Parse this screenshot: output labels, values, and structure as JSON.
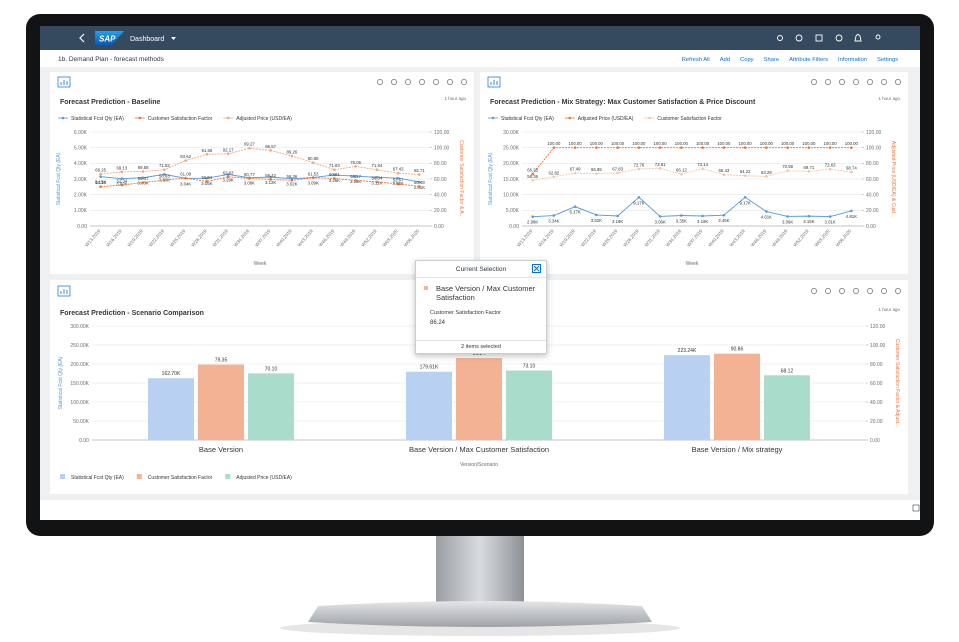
{
  "shell": {
    "logo": "SAP",
    "title": "Dashboard"
  },
  "page": {
    "title": "1b. Demand Plan - forecast methods",
    "actions": [
      "Refresh All",
      "Add",
      "Copy",
      "Share",
      "Attribute Filters",
      "Information",
      "Settings"
    ]
  },
  "chart_data": [
    {
      "type": "line",
      "title": "Forecast Prediction - Baseline",
      "timestamp": "1 hour ago",
      "xlabel": "Week",
      "ylabel": "Statistical Fcst Qty (EA)",
      "y2label": "Customer Satisfaction Factor & A...",
      "categories": [
        "W13.2019",
        "W16.2019",
        "W19.2019",
        "W22.2019",
        "W25.2019",
        "W28.2019",
        "W31.2019",
        "W34.2019",
        "W37.2019",
        "W40.2019",
        "W43.2019",
        "W46.2019",
        "W49.2019",
        "W52.2019",
        "W03.2020",
        "W06.2020"
      ],
      "ylim": [
        0,
        6000
      ],
      "yticks": [
        {
          "value": 0,
          "label": "0.00"
        },
        {
          "value": 1000,
          "label": "1.00K"
        },
        {
          "value": 2000,
          "label": "2.00K"
        },
        {
          "value": 3000,
          "label": "3.00K"
        },
        {
          "value": 4000,
          "label": "4.00K"
        },
        {
          "value": 5000,
          "label": "5.00K"
        },
        {
          "value": 6000,
          "label": "6.00K"
        }
      ],
      "y2lim": [
        0,
        120
      ],
      "y2ticks": [
        {
          "value": 0,
          "label": "0.00"
        },
        {
          "value": 20,
          "label": "20.00"
        },
        {
          "value": 40,
          "label": "40.00"
        },
        {
          "value": 60,
          "label": "60.00"
        },
        {
          "value": 80,
          "label": "80.00"
        },
        {
          "value": 100,
          "label": "100.00"
        },
        {
          "value": 120,
          "label": "120.00"
        }
      ],
      "series": [
        {
          "name": "Statistical Fcst Qty (EA)",
          "color": "#5899da",
          "axis": "y",
          "values": [
            3150,
            3020,
            3080,
            3300,
            3040,
            3050,
            3290,
            3080,
            3120,
            3020,
            3090,
            3260,
            3180,
            3110,
            3050,
            2810
          ],
          "value_labels": [
            "3.15K",
            "3.02K",
            "3.08K",
            "3.30K",
            "3.04K",
            "3.05K",
            "3.29K",
            "3.08K",
            "3.12K",
            "3.02K",
            "3.09K",
            "3.26K",
            "3.18K",
            "3.11K",
            "3.05K",
            "2.81K"
          ]
        },
        {
          "name": "Customer Satisfaction Factor",
          "color": "#e8743b",
          "axis": "y2",
          "values": [
            50.16,
            52.34,
            55.47,
            58.63,
            61.08,
            56.91,
            62.83,
            60.77,
            59.42,
            58.36,
            61.53,
            60.81,
            58.17,
            56.34,
            53.67,
            50.48
          ]
        },
        {
          "name": "Adjusted Price (USD/EA)",
          "color": "#f3a67a",
          "axis": "y2",
          "values": [
            66.25,
            69.13,
            69.58,
            71.82,
            83.62,
            91.58,
            92.17,
            99.27,
            96.57,
            89.26,
            80.88,
            71.83,
            76.06,
            71.84,
            67.43,
            65.71
          ]
        }
      ]
    },
    {
      "type": "line",
      "title": "Forecast Prediction - Mix Strategy: Max Customer Satisfaction & Price Discount",
      "timestamp": "1 hour ago",
      "xlabel": "Week",
      "ylabel": "Statistical Fcst Qty (EA)",
      "y2label": "Adjusted Price (USD/EA) & Cust...",
      "categories": [
        "W13.2019",
        "W16.2019",
        "W19.2019",
        "W22.2019",
        "W25.2019",
        "W28.2019",
        "W31.2019",
        "W34.2019",
        "W37.2019",
        "W40.2019",
        "W43.2019",
        "W46.2019",
        "W49.2019",
        "W52.2019",
        "W03.2020",
        "W06.2020"
      ],
      "ylim": [
        0,
        30000
      ],
      "yticks": [
        {
          "value": 0,
          "label": "0.00"
        },
        {
          "value": 5000,
          "label": "5.00K"
        },
        {
          "value": 10000,
          "label": "10.00K"
        },
        {
          "value": 15000,
          "label": "15.00K"
        },
        {
          "value": 20000,
          "label": "20.00K"
        },
        {
          "value": 25000,
          "label": "25.00K"
        },
        {
          "value": 30000,
          "label": "30.00K"
        }
      ],
      "y2lim": [
        0,
        120
      ],
      "y2ticks": [
        {
          "value": 0,
          "label": "0.00"
        },
        {
          "value": 20,
          "label": "20.00"
        },
        {
          "value": 40,
          "label": "40.00"
        },
        {
          "value": 60,
          "label": "60.00"
        },
        {
          "value": 80,
          "label": "80.00"
        },
        {
          "value": 100,
          "label": "100.00"
        },
        {
          "value": 120,
          "label": "120.00"
        }
      ],
      "series": [
        {
          "name": "Statistical Fcst Qty (EA)",
          "color": "#5899da",
          "axis": "y",
          "values": [
            2980,
            3340,
            6170,
            3520,
            3190,
            9170,
            3060,
            3350,
            3190,
            3450,
            9170,
            4610,
            3060,
            3150,
            3010,
            4810
          ],
          "value_labels": [
            "2.98K",
            "3.34K",
            "6.17K",
            "3.52K",
            "3.19K",
            "9.17K",
            "3.06K",
            "3.35K",
            "3.19K",
            "3.45K",
            "9.17K",
            "4.61K",
            "3.06K",
            "3.15K",
            "3.01K",
            "4.81K"
          ]
        },
        {
          "name": "Adjusted Price (USD/EA)",
          "color": "#e8743b",
          "axis": "y2",
          "values": [
            66.25,
            100,
            100,
            100,
            100,
            100,
            100,
            100,
            100,
            100,
            100,
            100,
            100,
            100,
            100,
            100
          ],
          "value_labels": [
            "66.25",
            "100.00",
            "100.00",
            "100.00",
            "100.00",
            "100.00",
            "100.00",
            "100.00",
            "100.00",
            "100.00",
            "100.00",
            "100.00",
            "100.00",
            "100.00",
            "100.00",
            "100.00"
          ]
        },
        {
          "name": "Customer Satisfaction Factor",
          "color": "#f5c4a2",
          "axis": "y2",
          "values": [
            58.36,
            62.82,
            67.49,
            66.85,
            67.83,
            72.76,
            73.61,
            66.12,
            73.14,
            65.43,
            64.22,
            63.28,
            70.58,
            69.71,
            72.63,
            68.74
          ]
        }
      ]
    },
    {
      "type": "bar",
      "title": "Forecast Prediction - Scenario Comparison",
      "timestamp": "1 hour ago",
      "xlabel": "Version/Scenario",
      "ylabel": "Statistical Fcst Qty (EA)",
      "y2label": "Customer Satisfaction Factor & Adjust...",
      "categories": [
        "Base Version",
        "Base Version / Max Customer Satisfaction",
        "Base Version / Mix strategy"
      ],
      "ylim": [
        0,
        300000
      ],
      "yticks": [
        {
          "value": 0,
          "label": "0.00"
        },
        {
          "value": 50000,
          "label": "50.00K"
        },
        {
          "value": 100000,
          "label": "100.00K"
        },
        {
          "value": 150000,
          "label": "150.00K"
        },
        {
          "value": 200000,
          "label": "200.00K"
        },
        {
          "value": 250000,
          "label": "250.00K"
        },
        {
          "value": 300000,
          "label": "300.00K"
        }
      ],
      "y2lim": [
        0,
        120
      ],
      "y2ticks": [
        {
          "value": 0,
          "label": "0.00"
        },
        {
          "value": 20,
          "label": "20.00"
        },
        {
          "value": 40,
          "label": "40.00"
        },
        {
          "value": 60,
          "label": "60.00"
        },
        {
          "value": 80,
          "label": "80.00"
        },
        {
          "value": 100,
          "label": "100.00"
        },
        {
          "value": 120,
          "label": "120.00"
        }
      ],
      "series": [
        {
          "name": "Statistical Fcst Qty (EA)",
          "color": "#b8d1f2",
          "axis": "y",
          "values": [
            162700,
            179610,
            223240
          ],
          "value_labels": [
            "162.70K",
            "179.61K",
            "223.24K"
          ]
        },
        {
          "name": "Customer Satisfaction Factor",
          "color": "#f4b294",
          "axis": "y2",
          "values": [
            79.35,
            86.24,
            90.86
          ]
        },
        {
          "name": "Adjusted Price (USD/EA)",
          "color": "#a9dccb",
          "axis": "y2",
          "values": [
            70.1,
            73.1,
            68.12
          ],
          "value_labels": [
            "70.10",
            "73.10",
            "68.12"
          ]
        }
      ]
    }
  ],
  "popover": {
    "title": "Current Selection",
    "item": "Base Version / Max Customer Satisfaction",
    "measure": "Customer Satisfaction Factor",
    "value": 86.24,
    "footer": "2 items selected"
  }
}
